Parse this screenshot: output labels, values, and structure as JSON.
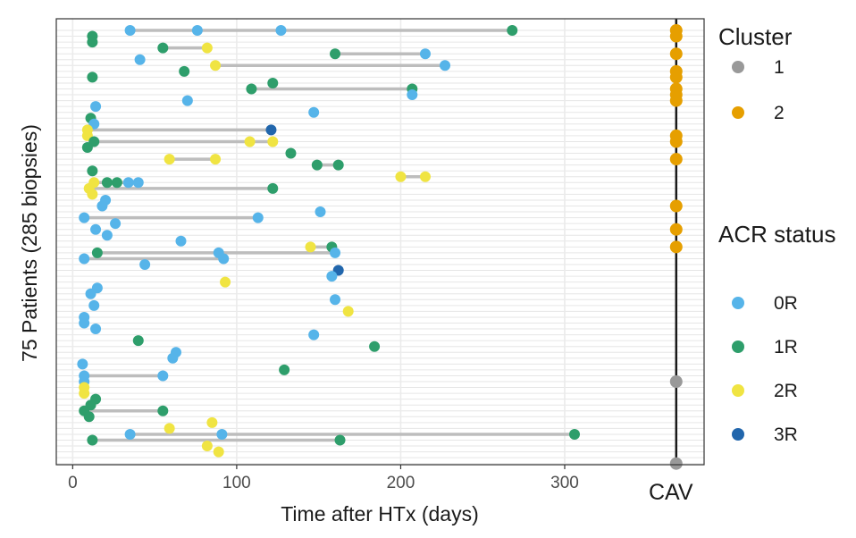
{
  "chart_data": {
    "type": "scatter",
    "xlabel": "Time after HTx (days)",
    "ylabel": "75 Patients (285 biopsies)",
    "xlim": [
      -10,
      385
    ],
    "x_ticks": [
      0,
      100,
      200,
      300
    ],
    "x_tick_labels": [
      "0",
      "100",
      "200",
      "300"
    ],
    "n_rows": 75,
    "grid": true,
    "cav_x": 368,
    "cav_label": "CAV",
    "legends": [
      {
        "title": "Cluster",
        "placement": "top-right",
        "entries": [
          {
            "label": "1",
            "color": "#999999"
          },
          {
            "label": "2",
            "color": "#E69F00"
          }
        ]
      },
      {
        "title": "ACR status",
        "placement": "right",
        "entries": [
          {
            "label": "0R",
            "color": "#56B4E9"
          },
          {
            "label": "1R",
            "color": "#2E9E6B"
          },
          {
            "label": "2R",
            "color": "#F0E442"
          },
          {
            "label": "3R",
            "color": "#2166AC"
          }
        ]
      }
    ],
    "colors": {
      "0R": "#56B4E9",
      "1R": "#2E9E6B",
      "2R": "#F0E442",
      "3R": "#2166AC",
      "cluster_1": "#999999",
      "cluster_2": "#E69F00"
    },
    "series": [
      {
        "row": 1,
        "points": [
          {
            "x": 35,
            "s": "0R"
          },
          {
            "x": 76,
            "s": "0R"
          },
          {
            "x": 127,
            "s": "0R"
          },
          {
            "x": 268,
            "s": "1R"
          }
        ]
      },
      {
        "row": 2,
        "points": [
          {
            "x": 12,
            "s": "1R"
          }
        ]
      },
      {
        "row": 3,
        "points": [
          {
            "x": 12,
            "s": "1R"
          }
        ]
      },
      {
        "row": 4,
        "points": [
          {
            "x": 55,
            "s": "1R"
          },
          {
            "x": 82,
            "s": "2R"
          }
        ]
      },
      {
        "row": 5,
        "points": [
          {
            "x": 160,
            "s": "1R"
          },
          {
            "x": 215,
            "s": "0R"
          }
        ]
      },
      {
        "row": 6,
        "points": [
          {
            "x": 41,
            "s": "0R"
          }
        ]
      },
      {
        "row": 7,
        "points": [
          {
            "x": 87,
            "s": "2R"
          },
          {
            "x": 227,
            "s": "0R"
          }
        ]
      },
      {
        "row": 8,
        "points": [
          {
            "x": 68,
            "s": "1R"
          }
        ]
      },
      {
        "row": 9,
        "points": [
          {
            "x": 12,
            "s": "1R"
          }
        ]
      },
      {
        "row": 10,
        "points": [
          {
            "x": 122,
            "s": "1R"
          }
        ]
      },
      {
        "row": 11,
        "points": [
          {
            "x": 109,
            "s": "1R"
          },
          {
            "x": 207,
            "s": "1R"
          }
        ]
      },
      {
        "row": 12,
        "points": [
          {
            "x": 207,
            "s": "0R"
          }
        ]
      },
      {
        "row": 13,
        "points": [
          {
            "x": 70,
            "s": "0R"
          }
        ]
      },
      {
        "row": 14,
        "points": [
          {
            "x": 14,
            "s": "0R"
          }
        ]
      },
      {
        "row": 15,
        "points": [
          {
            "x": 147,
            "s": "0R"
          }
        ]
      },
      {
        "row": 16,
        "points": [
          {
            "x": 11,
            "s": "1R"
          }
        ]
      },
      {
        "row": 17,
        "points": [
          {
            "x": 13,
            "s": "0R"
          }
        ]
      },
      {
        "row": 18,
        "points": [
          {
            "x": 9,
            "s": "2R"
          },
          {
            "x": 121,
            "s": "3R"
          }
        ]
      },
      {
        "row": 19,
        "points": [
          {
            "x": 9,
            "s": "2R"
          }
        ]
      },
      {
        "row": 20,
        "points": [
          {
            "x": 13,
            "s": "1R"
          },
          {
            "x": 108,
            "s": "2R"
          },
          {
            "x": 122,
            "s": "2R"
          }
        ]
      },
      {
        "row": 21,
        "points": [
          {
            "x": 9,
            "s": "1R"
          }
        ]
      },
      {
        "row": 22,
        "points": [
          {
            "x": 133,
            "s": "1R"
          }
        ]
      },
      {
        "row": 23,
        "points": [
          {
            "x": 59,
            "s": "2R"
          },
          {
            "x": 87,
            "s": "2R"
          }
        ]
      },
      {
        "row": 24,
        "points": [
          {
            "x": 149,
            "s": "1R"
          },
          {
            "x": 162,
            "s": "1R"
          }
        ]
      },
      {
        "row": 25,
        "points": [
          {
            "x": 12,
            "s": "1R"
          }
        ]
      },
      {
        "row": 26,
        "points": [
          {
            "x": 200,
            "s": "2R"
          },
          {
            "x": 215,
            "s": "2R"
          }
        ]
      },
      {
        "row": 27,
        "points": [
          {
            "x": 13,
            "s": "2R"
          },
          {
            "x": 21,
            "s": "1R"
          },
          {
            "x": 27,
            "s": "1R"
          },
          {
            "x": 34,
            "s": "0R"
          },
          {
            "x": 40,
            "s": "0R"
          }
        ]
      },
      {
        "row": 28,
        "points": [
          {
            "x": 10,
            "s": "2R"
          },
          {
            "x": 122,
            "s": "1R"
          }
        ]
      },
      {
        "row": 29,
        "points": [
          {
            "x": 12,
            "s": "2R"
          }
        ]
      },
      {
        "row": 30,
        "points": [
          {
            "x": 20,
            "s": "0R"
          }
        ]
      },
      {
        "row": 31,
        "points": [
          {
            "x": 18,
            "s": "0R"
          }
        ]
      },
      {
        "row": 32,
        "points": [
          {
            "x": 151,
            "s": "0R"
          }
        ]
      },
      {
        "row": 33,
        "points": [
          {
            "x": 7,
            "s": "0R"
          },
          {
            "x": 113,
            "s": "0R"
          }
        ]
      },
      {
        "row": 34,
        "points": [
          {
            "x": 26,
            "s": "0R"
          }
        ]
      },
      {
        "row": 35,
        "points": [
          {
            "x": 14,
            "s": "0R"
          }
        ]
      },
      {
        "row": 36,
        "points": [
          {
            "x": 21,
            "s": "0R"
          }
        ]
      },
      {
        "row": 37,
        "points": [
          {
            "x": 66,
            "s": "0R"
          }
        ]
      },
      {
        "row": 38,
        "points": [
          {
            "x": 145,
            "s": "2R"
          },
          {
            "x": 158,
            "s": "1R"
          }
        ]
      },
      {
        "row": 39,
        "points": [
          {
            "x": 15,
            "s": "1R"
          },
          {
            "x": 89,
            "s": "0R"
          },
          {
            "x": 160,
            "s": "0R"
          }
        ]
      },
      {
        "row": 40,
        "points": [
          {
            "x": 7,
            "s": "0R"
          },
          {
            "x": 92,
            "s": "0R"
          }
        ]
      },
      {
        "row": 41,
        "points": [
          {
            "x": 44,
            "s": "0R"
          }
        ]
      },
      {
        "row": 42,
        "points": [
          {
            "x": 162,
            "s": "3R"
          }
        ]
      },
      {
        "row": 43,
        "points": [
          {
            "x": 158,
            "s": "0R"
          }
        ]
      },
      {
        "row": 44,
        "points": [
          {
            "x": 93,
            "s": "2R"
          }
        ]
      },
      {
        "row": 45,
        "points": [
          {
            "x": 15,
            "s": "0R"
          }
        ]
      },
      {
        "row": 46,
        "points": [
          {
            "x": 11,
            "s": "0R"
          }
        ]
      },
      {
        "row": 47,
        "points": [
          {
            "x": 160,
            "s": "0R"
          }
        ]
      },
      {
        "row": 48,
        "points": [
          {
            "x": 13,
            "s": "0R"
          }
        ]
      },
      {
        "row": 49,
        "points": [
          {
            "x": 168,
            "s": "2R"
          }
        ]
      },
      {
        "row": 50,
        "points": [
          {
            "x": 7,
            "s": "0R"
          }
        ]
      },
      {
        "row": 51,
        "points": [
          {
            "x": 7,
            "s": "0R"
          }
        ]
      },
      {
        "row": 52,
        "points": [
          {
            "x": 14,
            "s": "0R"
          }
        ]
      },
      {
        "row": 53,
        "points": [
          {
            "x": 147,
            "s": "0R"
          }
        ]
      },
      {
        "row": 54,
        "points": [
          {
            "x": 40,
            "s": "1R"
          }
        ]
      },
      {
        "row": 55,
        "points": [
          {
            "x": 184,
            "s": "1R"
          }
        ]
      },
      {
        "row": 56,
        "points": [
          {
            "x": 63,
            "s": "0R"
          }
        ]
      },
      {
        "row": 57,
        "points": [
          {
            "x": 61,
            "s": "0R"
          }
        ]
      },
      {
        "row": 58,
        "points": [
          {
            "x": 6,
            "s": "0R"
          }
        ]
      },
      {
        "row": 59,
        "points": [
          {
            "x": 129,
            "s": "1R"
          }
        ]
      },
      {
        "row": 60,
        "points": [
          {
            "x": 7,
            "s": "0R"
          },
          {
            "x": 55,
            "s": "0R"
          }
        ]
      },
      {
        "row": 61,
        "points": [
          {
            "x": 7,
            "s": "0R"
          }
        ]
      },
      {
        "row": 62,
        "points": [
          {
            "x": 7,
            "s": "2R"
          }
        ]
      },
      {
        "row": 63,
        "points": [
          {
            "x": 7,
            "s": "2R"
          }
        ]
      },
      {
        "row": 64,
        "points": [
          {
            "x": 14,
            "s": "1R"
          }
        ]
      },
      {
        "row": 65,
        "points": [
          {
            "x": 11,
            "s": "1R"
          }
        ]
      },
      {
        "row": 66,
        "points": [
          {
            "x": 7,
            "s": "1R"
          },
          {
            "x": 55,
            "s": "1R"
          }
        ]
      },
      {
        "row": 67,
        "points": [
          {
            "x": 10,
            "s": "1R"
          }
        ]
      },
      {
        "row": 68,
        "points": [
          {
            "x": 85,
            "s": "2R"
          }
        ]
      },
      {
        "row": 69,
        "points": [
          {
            "x": 59,
            "s": "2R"
          }
        ]
      },
      {
        "row": 70,
        "points": [
          {
            "x": 35,
            "s": "0R"
          },
          {
            "x": 91,
            "s": "0R"
          },
          {
            "x": 306,
            "s": "1R"
          }
        ]
      },
      {
        "row": 71,
        "points": [
          {
            "x": 12,
            "s": "1R"
          },
          {
            "x": 163,
            "s": "1R"
          }
        ]
      },
      {
        "row": 72,
        "points": [
          {
            "x": 82,
            "s": "2R"
          }
        ]
      },
      {
        "row": 73,
        "points": [
          {
            "x": 89,
            "s": "2R"
          }
        ]
      }
    ],
    "cav_points": [
      {
        "row": 1,
        "cluster": "2"
      },
      {
        "row": 2,
        "cluster": "2"
      },
      {
        "row": 5,
        "cluster": "2"
      },
      {
        "row": 8,
        "cluster": "2"
      },
      {
        "row": 9,
        "cluster": "2"
      },
      {
        "row": 11,
        "cluster": "2"
      },
      {
        "row": 12,
        "cluster": "2"
      },
      {
        "row": 13,
        "cluster": "2"
      },
      {
        "row": 19,
        "cluster": "2"
      },
      {
        "row": 20,
        "cluster": "2"
      },
      {
        "row": 23,
        "cluster": "2"
      },
      {
        "row": 31,
        "cluster": "2"
      },
      {
        "row": 35,
        "cluster": "2"
      },
      {
        "row": 38,
        "cluster": "2"
      },
      {
        "row": 61,
        "cluster": "1"
      },
      {
        "row": 75,
        "cluster": "1"
      }
    ]
  }
}
